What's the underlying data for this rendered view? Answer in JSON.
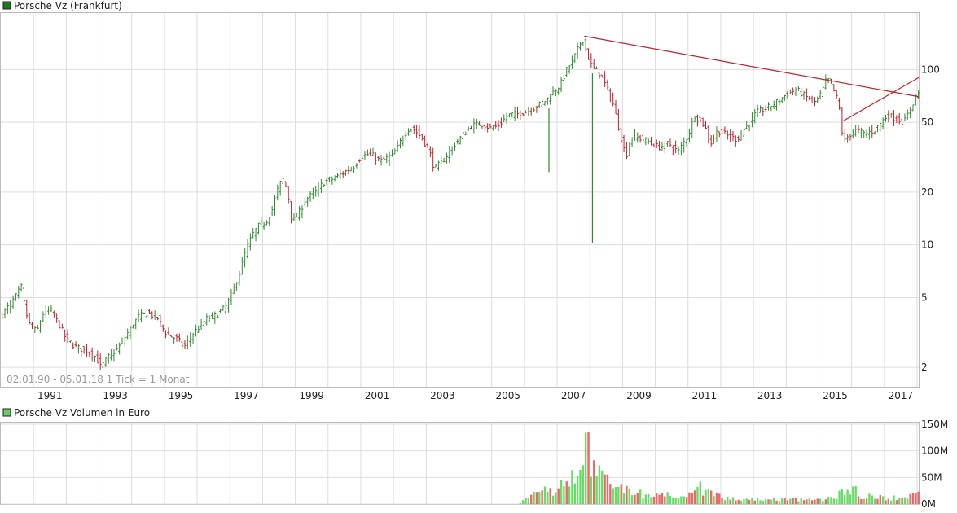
{
  "colors": {
    "up": "#2e8b2e",
    "down": "#c0202a",
    "trendline": "#c0202a",
    "grid": "#dddddd",
    "panel_border": "#bbbbbb",
    "legend_price": "#1a7a1a",
    "legend_volume": "#66cc66",
    "volume_up": "#66dd66",
    "volume_down": "#ee6666"
  },
  "chart_data": [
    {
      "type": "ohlc",
      "title": "Porsche Vz (Frankfurt)",
      "info": "02.01.90 - 05.01.18   1 Tick = 1 Monat",
      "scale": "log",
      "ylim": [
        1.55,
        210
      ],
      "xlim": [
        1990.0,
        2018.05
      ],
      "x_ticks": [
        "1991",
        "1993",
        "1995",
        "1997",
        "1999",
        "2001",
        "2003",
        "2005",
        "2007",
        "2009",
        "2011",
        "2013",
        "2015",
        "2017"
      ],
      "y_ticks": [
        2,
        5,
        10,
        20,
        50,
        100
      ],
      "grid": true,
      "close_path": [
        [
          1990.0,
          3.9
        ],
        [
          1990.5,
          5.2
        ],
        [
          1990.62,
          5.8
        ],
        [
          1990.75,
          4.2
        ],
        [
          1990.9,
          3.4
        ],
        [
          1991.1,
          3.2
        ],
        [
          1991.3,
          4.1
        ],
        [
          1991.5,
          4.3
        ],
        [
          1991.75,
          3.6
        ],
        [
          1992.0,
          2.9
        ],
        [
          1992.3,
          2.6
        ],
        [
          1992.6,
          2.5
        ],
        [
          1992.9,
          2.3
        ],
        [
          1993.05,
          2.0
        ],
        [
          1993.3,
          2.3
        ],
        [
          1993.6,
          2.6
        ],
        [
          1993.9,
          3.2
        ],
        [
          1994.2,
          3.9
        ],
        [
          1994.5,
          4.1
        ],
        [
          1994.8,
          3.8
        ],
        [
          1995.0,
          3.2
        ],
        [
          1995.2,
          3.0
        ],
        [
          1995.4,
          2.9
        ],
        [
          1995.6,
          2.6
        ],
        [
          1995.8,
          3.0
        ],
        [
          1996.0,
          3.3
        ],
        [
          1996.3,
          3.8
        ],
        [
          1996.6,
          4.0
        ],
        [
          1996.9,
          4.5
        ],
        [
          1997.1,
          5.5
        ],
        [
          1997.3,
          7.0
        ],
        [
          1997.5,
          9.5
        ],
        [
          1997.7,
          11.5
        ],
        [
          1997.9,
          13.0
        ],
        [
          1998.1,
          13.5
        ],
        [
          1998.3,
          16.0
        ],
        [
          1998.5,
          22.0
        ],
        [
          1998.65,
          24.0
        ],
        [
          1998.8,
          18.0
        ],
        [
          1998.9,
          13.5
        ],
        [
          1999.1,
          15.0
        ],
        [
          1999.3,
          18.0
        ],
        [
          1999.6,
          20.0
        ],
        [
          1999.9,
          23.0
        ],
        [
          2000.2,
          24.0
        ],
        [
          2000.5,
          26.0
        ],
        [
          2000.8,
          28.0
        ],
        [
          2001.0,
          32.0
        ],
        [
          2001.3,
          33.0
        ],
        [
          2001.6,
          30.0
        ],
        [
          2001.9,
          32.0
        ],
        [
          2002.1,
          35.0
        ],
        [
          2002.3,
          42.0
        ],
        [
          2002.5,
          47.0
        ],
        [
          2002.7,
          44.0
        ],
        [
          2002.9,
          40.0
        ],
        [
          2003.1,
          34.0
        ],
        [
          2003.25,
          27.0
        ],
        [
          2003.5,
          30.0
        ],
        [
          2003.8,
          36.0
        ],
        [
          2004.1,
          42.0
        ],
        [
          2004.4,
          48.0
        ],
        [
          2004.7,
          49.0
        ],
        [
          2005.0,
          46.0
        ],
        [
          2005.2,
          48.0
        ],
        [
          2005.5,
          55.0
        ],
        [
          2005.8,
          56.0
        ],
        [
          2006.1,
          58.0
        ],
        [
          2006.4,
          62.0
        ],
        [
          2006.7,
          68.0
        ],
        [
          2006.9,
          75.0
        ],
        [
          2007.1,
          82.0
        ],
        [
          2007.3,
          100.0
        ],
        [
          2007.5,
          115.0
        ],
        [
          2007.7,
          140.0
        ],
        [
          2007.8,
          150.0
        ],
        [
          2007.9,
          125.0
        ],
        [
          2008.05,
          105.0
        ],
        [
          2008.3,
          95.0
        ],
        [
          2008.5,
          80.0
        ],
        [
          2008.7,
          65.0
        ],
        [
          2008.9,
          45.0
        ],
        [
          2009.1,
          32.0
        ],
        [
          2009.3,
          42.0
        ],
        [
          2009.6,
          40.0
        ],
        [
          2009.9,
          38.0
        ],
        [
          2010.1,
          36.0
        ],
        [
          2010.4,
          38.0
        ],
        [
          2010.7,
          34.0
        ],
        [
          2011.0,
          42.0
        ],
        [
          2011.2,
          55.0
        ],
        [
          2011.5,
          48.0
        ],
        [
          2011.7,
          38.0
        ],
        [
          2011.9,
          45.0
        ],
        [
          2012.2,
          42.0
        ],
        [
          2012.5,
          40.0
        ],
        [
          2012.8,
          48.0
        ],
        [
          2013.1,
          57.0
        ],
        [
          2013.4,
          60.0
        ],
        [
          2013.7,
          65.0
        ],
        [
          2014.0,
          72.0
        ],
        [
          2014.3,
          77.0
        ],
        [
          2014.6,
          70.0
        ],
        [
          2014.9,
          65.0
        ],
        [
          2015.1,
          75.0
        ],
        [
          2015.25,
          90.0
        ],
        [
          2015.4,
          80.0
        ],
        [
          2015.6,
          65.0
        ],
        [
          2015.75,
          38.0
        ],
        [
          2015.9,
          42.0
        ],
        [
          2016.1,
          45.0
        ],
        [
          2016.4,
          43.0
        ],
        [
          2016.7,
          45.0
        ],
        [
          2016.9,
          50.0
        ],
        [
          2017.1,
          55.0
        ],
        [
          2017.4,
          52.0
        ],
        [
          2017.6,
          50.0
        ],
        [
          2017.8,
          60.0
        ],
        [
          2017.95,
          70.0
        ],
        [
          2018.02,
          74.0
        ]
      ],
      "spikes": [
        {
          "x": 2006.75,
          "low": 26.0,
          "high": 60.0
        },
        {
          "x": 2008.08,
          "low": 10.3,
          "high": 95.0
        }
      ],
      "trendlines": [
        {
          "from": [
            2007.83,
            155.0
          ],
          "to": [
            2018.05,
            70.0
          ]
        },
        {
          "from": [
            2015.75,
            51.0
          ],
          "to": [
            2018.05,
            90.0
          ]
        }
      ]
    },
    {
      "type": "bar",
      "title": "Porsche Vz Volumen in Euro",
      "xlim": [
        1990.0,
        2018.05
      ],
      "y_ticks": [
        "0M",
        "50M",
        "100M",
        "150M"
      ],
      "ylim": [
        0,
        150
      ],
      "grid": true,
      "volume_path": [
        [
          1990.0,
          0
        ],
        [
          2005.8,
          0
        ],
        [
          2006.0,
          8
        ],
        [
          2006.3,
          18
        ],
        [
          2006.6,
          25
        ],
        [
          2006.9,
          32
        ],
        [
          2007.2,
          40
        ],
        [
          2007.5,
          55
        ],
        [
          2007.7,
          70
        ],
        [
          2007.85,
          134
        ],
        [
          2008.0,
          95
        ],
        [
          2008.2,
          70
        ],
        [
          2008.4,
          55
        ],
        [
          2008.6,
          45
        ],
        [
          2008.8,
          35
        ],
        [
          2009.0,
          30
        ],
        [
          2009.3,
          25
        ],
        [
          2009.6,
          20
        ],
        [
          2010.0,
          15
        ],
        [
          2010.4,
          18
        ],
        [
          2010.8,
          20
        ],
        [
          2011.1,
          30
        ],
        [
          2011.3,
          35
        ],
        [
          2011.6,
          28
        ],
        [
          2012.0,
          15
        ],
        [
          2012.5,
          12
        ],
        [
          2013.0,
          10
        ],
        [
          2014.0,
          9
        ],
        [
          2015.0,
          10
        ],
        [
          2015.5,
          15
        ],
        [
          2015.8,
          30
        ],
        [
          2016.0,
          32
        ],
        [
          2016.3,
          18
        ],
        [
          2016.8,
          14
        ],
        [
          2017.2,
          12
        ],
        [
          2017.6,
          14
        ],
        [
          2018.02,
          20
        ]
      ]
    }
  ]
}
